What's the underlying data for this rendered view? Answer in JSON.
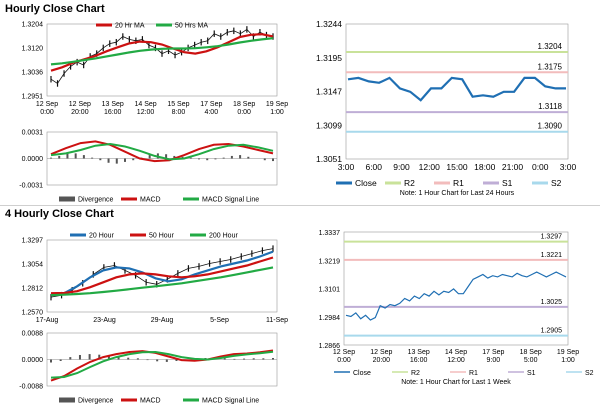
{
  "sections": [
    {
      "title": "Hourly Close Chart"
    },
    {
      "title": "4 Hourly Close Chart"
    }
  ],
  "chart_data": [
    {
      "id": "hourly_price_ma",
      "type": "line",
      "legend": [
        "20 Hr MA",
        "50 Hrs MA"
      ],
      "ylim": [
        1.2951,
        1.3204
      ],
      "yticks": [
        "1.3204",
        "1.3120",
        "1.3036",
        "1.2951"
      ],
      "xticks": [
        "12 Sep\n0:00",
        "12 Sep\n20:00",
        "13 Sep\n16:00",
        "14 Sep\n12:00",
        "15 Sep\n8:00",
        "17 Sep\n4:00",
        "18 Sep\n0:00",
        "19 Sep\n1:00"
      ],
      "colors": {
        "price": "#111111",
        "ma20": "#cc1111",
        "ma50": "#22aa44"
      },
      "series": [
        {
          "name": "20 Hr MA",
          "values": [
            1.304,
            1.3052,
            1.3068,
            1.308,
            1.3092,
            1.3108,
            1.3122,
            1.3135,
            1.3142,
            1.314,
            1.3132,
            1.3118,
            1.3105,
            1.31,
            1.3108,
            1.3122,
            1.314,
            1.3158,
            1.3166,
            1.3168,
            1.316
          ]
        },
        {
          "name": "50 Hrs MA",
          "values": [
            1.3062,
            1.3066,
            1.3071,
            1.3077,
            1.3083,
            1.309,
            1.3097,
            1.3104,
            1.311,
            1.3114,
            1.3117,
            1.3118,
            1.3118,
            1.3119,
            1.3122,
            1.3126,
            1.3132,
            1.3139,
            1.3145,
            1.315,
            1.3154
          ]
        }
      ],
      "price": [
        1.301,
        1.2995,
        1.303,
        1.3055,
        1.307,
        1.306,
        1.309,
        1.31,
        1.312,
        1.3135,
        1.314,
        1.316,
        1.315,
        1.3145,
        1.315,
        1.313,
        1.312,
        1.31,
        1.311,
        1.3095,
        1.3105,
        1.312,
        1.313,
        1.314,
        1.3145,
        1.317,
        1.316,
        1.3175,
        1.318,
        1.317,
        1.3185,
        1.316,
        1.3175,
        1.3165,
        1.316
      ]
    },
    {
      "id": "hourly_macd",
      "type": "line",
      "legend": [
        "Divergence",
        "MACD",
        "MACD Signal Line"
      ],
      "ylim": [
        -0.0031,
        0.0031
      ],
      "yticks": [
        "0.0031",
        "0.0000",
        "-0.0031"
      ],
      "colors": {
        "divergence": "#555555",
        "macd": "#cc1111",
        "signal": "#22aa44"
      },
      "series": [
        {
          "name": "MACD",
          "values": [
            0.0005,
            0.0012,
            0.0018,
            0.002,
            0.0016,
            0.0008,
            0.0,
            -0.0003,
            -0.0002,
            0.0004,
            0.0011,
            0.0016,
            0.0017,
            0.0014,
            0.001,
            0.0006
          ]
        },
        {
          "name": "MACD Signal Line",
          "values": [
            0.0004,
            0.0006,
            0.001,
            0.0015,
            0.0017,
            0.0014,
            0.0009,
            0.0003,
            -0.0001,
            0.0,
            0.0005,
            0.0011,
            0.0015,
            0.0016,
            0.0013,
            0.0009
          ]
        }
      ],
      "divergence": [
        0.0001,
        0.0003,
        0.0006,
        0.0006,
        0.0004,
        0.0001,
        -0.0002,
        -0.0005,
        -0.0006,
        -0.0004,
        -0.0002,
        0.0001,
        0.0004,
        0.0006,
        0.0005,
        0.0003,
        0.0002,
        0.0001,
        -0.0001,
        -0.0002,
        -0.0001,
        0.0001,
        0.0003,
        0.0004,
        0.0002,
        0.0,
        -0.0002,
        -0.0003
      ]
    },
    {
      "id": "hourly_24h",
      "type": "line",
      "ylim": [
        1.3051,
        1.3244
      ],
      "yticks": [
        "1.3244",
        "1.3195",
        "1.3147",
        "1.3099",
        "1.3051"
      ],
      "xticks": [
        "3:00",
        "6:00",
        "9:00",
        "12:00",
        "15:00",
        "18:00",
        "21:00",
        "0:00",
        "3:00"
      ],
      "legend": [
        "Close",
        "R2",
        "R1",
        "S1",
        "S2"
      ],
      "note": "Note: 1 Hour Chart for Last 24 Hours",
      "levels": [
        {
          "name": "R2",
          "value": 1.3204,
          "label": "1.3204",
          "color": "#c9e29a"
        },
        {
          "name": "R1",
          "value": 1.3175,
          "label": "1.3175",
          "color": "#f2bcbc"
        },
        {
          "name": "S1",
          "value": 1.3118,
          "label": "1.3118",
          "color": "#bfaed6"
        },
        {
          "name": "S2",
          "value": 1.309,
          "label": "1.3090",
          "color": "#a8d9ec"
        }
      ],
      "colors": {
        "close": "#1f6fb3"
      },
      "series": [
        {
          "name": "Close",
          "values": [
            1.3165,
            1.3167,
            1.3162,
            1.316,
            1.3167,
            1.3152,
            1.3147,
            1.3135,
            1.3152,
            1.3152,
            1.3167,
            1.3165,
            1.314,
            1.3142,
            1.314,
            1.3147,
            1.3147,
            1.3167,
            1.3167,
            1.3155,
            1.3152,
            1.3152
          ]
        }
      ]
    },
    {
      "id": "4h_price_ma",
      "type": "line",
      "legend": [
        "20 Hour",
        "50 Hour",
        "200 Hour"
      ],
      "ylim": [
        1.257,
        1.3297
      ],
      "yticks": [
        "1.3297",
        "1.3054",
        "1.2812",
        "1.2570"
      ],
      "xticks": [
        "17-Aug",
        "23-Aug",
        "29-Aug",
        "5-Sep",
        "11-Sep"
      ],
      "colors": {
        "price": "#111111",
        "h20": "#1f6fb3",
        "h50": "#cc1111",
        "h200": "#22aa44"
      },
      "series": [
        {
          "name": "20 Hour",
          "values": [
            1.274,
            1.276,
            1.283,
            1.292,
            1.299,
            1.302,
            1.301,
            1.297,
            1.291,
            1.288,
            1.29,
            1.295,
            1.299,
            1.303,
            1.306,
            1.309,
            1.313,
            1.318
          ]
        },
        {
          "name": "50 Hour",
          "values": [
            1.276,
            1.2762,
            1.278,
            1.282,
            1.287,
            1.292,
            1.295,
            1.296,
            1.295,
            1.293,
            1.292,
            1.293,
            1.295,
            1.298,
            1.301,
            1.304,
            1.308,
            1.312
          ]
        },
        {
          "name": "200 Hour",
          "values": [
            1.274,
            1.2745,
            1.2752,
            1.276,
            1.2772,
            1.2785,
            1.28,
            1.2815,
            1.283,
            1.2845,
            1.286,
            1.288,
            1.29,
            1.292,
            1.2945,
            1.297,
            1.2995,
            1.302
          ]
        }
      ],
      "price": [
        1.272,
        1.274,
        1.279,
        1.286,
        1.295,
        1.302,
        1.304,
        1.299,
        1.294,
        1.287,
        1.285,
        1.29,
        1.296,
        1.301,
        1.303,
        1.306,
        1.308,
        1.31,
        1.313,
        1.316,
        1.319,
        1.321
      ]
    },
    {
      "id": "4h_macd",
      "type": "line",
      "legend": [
        "Divergence",
        "MACD",
        "MACD Signal Line"
      ],
      "ylim": [
        -0.0088,
        0.0088
      ],
      "yticks": [
        "0.0088",
        "0.0000",
        "-0.0088"
      ],
      "colors": {
        "divergence": "#555555",
        "macd": "#cc1111",
        "signal": "#22aa44"
      },
      "series": [
        {
          "name": "MACD",
          "values": [
            -0.007,
            -0.0055,
            -0.003,
            -0.0008,
            0.0008,
            0.0018,
            0.0025,
            0.0028,
            0.0022,
            0.001,
            -0.0002,
            -0.0004,
            0.0,
            0.001,
            0.0018,
            0.002,
            0.0024,
            0.003
          ]
        },
        {
          "name": "MACD Signal Line",
          "values": [
            -0.006,
            -0.0058,
            -0.0045,
            -0.0025,
            -0.0006,
            0.0008,
            0.0018,
            0.0024,
            0.0025,
            0.0018,
            0.0008,
            0.0002,
            0.0,
            0.0005,
            0.0012,
            0.0017,
            0.0021,
            0.0026
          ]
        }
      ],
      "divergence": [
        -0.001,
        -0.0005,
        0.0008,
        0.0015,
        0.0018,
        0.0016,
        0.0012,
        0.0008,
        0.0006,
        0.0004,
        -0.0002,
        -0.0006,
        -0.0008,
        -0.0005,
        -0.0002,
        0.0002,
        0.0005,
        0.0006,
        0.0004,
        0.0002,
        0.0003,
        0.0004,
        0.0004,
        0.0005
      ]
    },
    {
      "id": "4h_week",
      "type": "line",
      "ylim": [
        1.2866,
        1.3337
      ],
      "yticks": [
        "1.3337",
        "1.3219",
        "1.3101",
        "1.2984",
        "1.2866"
      ],
      "xticks": [
        "12 Sep\n0:00",
        "12 Sep\n20:00",
        "13 Sep\n16:00",
        "14 Sep\n12:00",
        "17 Sep\n9:00",
        "18 Sep\n5:00",
        "19 Sep\n1:00"
      ],
      "legend": [
        "Close",
        "R2",
        "R1",
        "S1",
        "S2"
      ],
      "note": "Note: 1 Hour Chart for Last 1 Week",
      "levels": [
        {
          "name": "R2",
          "value": 1.3297,
          "label": "1.3297",
          "color": "#c9e29a"
        },
        {
          "name": "R1",
          "value": 1.3221,
          "label": "1.3221",
          "color": "#f2bcbc"
        },
        {
          "name": "S1",
          "value": 1.3025,
          "label": "1.3025",
          "color": "#bfaed6"
        },
        {
          "name": "S2",
          "value": 1.2905,
          "label": "1.2905",
          "color": "#a8d9ec"
        }
      ],
      "colors": {
        "close": "#1f6fb3"
      },
      "series": [
        {
          "name": "Close",
          "values": [
            1.299,
            1.2985,
            1.3,
            1.2975,
            1.299,
            1.297,
            1.298,
            1.303,
            1.302,
            1.3035,
            1.303,
            1.304,
            1.306,
            1.305,
            1.307,
            1.306,
            1.308,
            1.307,
            1.309,
            1.3075,
            1.309,
            1.3085,
            1.31,
            1.308,
            1.308,
            1.311,
            1.314,
            1.315,
            1.316,
            1.3145,
            1.3155,
            1.315,
            1.316,
            1.3155,
            1.315,
            1.3165,
            1.3155,
            1.315,
            1.316,
            1.317,
            1.316,
            1.315,
            1.316,
            1.317,
            1.316,
            1.315
          ]
        }
      ]
    }
  ]
}
